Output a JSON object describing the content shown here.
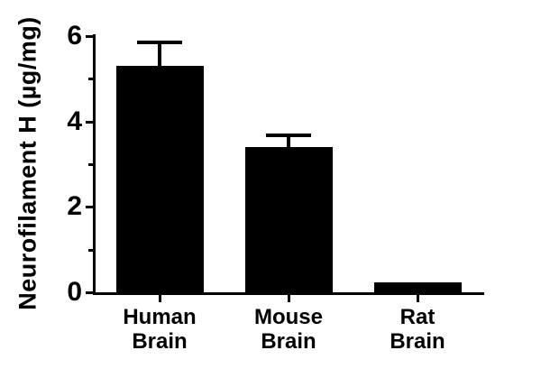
{
  "chart_data": {
    "type": "bar",
    "title": "",
    "ylabel": "Neurofilament H (µg/mg)",
    "xlabel": "",
    "categories": [
      "Human\nBrain",
      "Mouse\nBrain",
      "Rat\nBrain"
    ],
    "values": [
      5.3,
      3.4,
      0.23
    ],
    "errors": [
      0.55,
      0.28,
      0
    ],
    "error_style": "upper-error-caps-only",
    "ylim": [
      0,
      6
    ],
    "yticks": [
      0,
      2,
      4,
      6
    ],
    "ytick_labels": [
      "0",
      "2",
      "4",
      "6"
    ],
    "yticks_minor": [
      1,
      3,
      5
    ],
    "bar_color": "#000000",
    "axis_color": "#000000",
    "background_color": "#ffffff",
    "grid": false,
    "legend": false
  }
}
